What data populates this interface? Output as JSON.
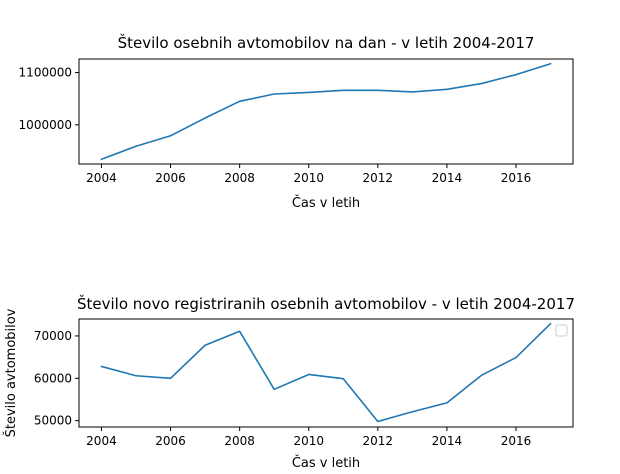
{
  "chart_data": [
    {
      "type": "line",
      "title": "Število osebnih avtomobilov na dan - v letih 2004-2017",
      "xlabel": "Čas v letih",
      "ylabel": "",
      "xlim": [
        2003.35,
        2017.65
      ],
      "ylim": [
        925000,
        1126000
      ],
      "xticks": [
        2004,
        2006,
        2008,
        2010,
        2012,
        2014,
        2016
      ],
      "yticks": [
        1000000,
        1100000
      ],
      "ytick_labels": [
        "1000000",
        "1100000"
      ],
      "color": "#1f77b4",
      "series": [
        {
          "x": [
            2004,
            2005,
            2006,
            2007,
            2008,
            2009,
            2010,
            2011,
            2012,
            2013,
            2014,
            2015,
            2016,
            2017
          ],
          "values": [
            934000,
            959000,
            979000,
            1013000,
            1045000,
            1059000,
            1062000,
            1066000,
            1066000,
            1063000,
            1068000,
            1079000,
            1096000,
            1117000
          ]
        }
      ],
      "legend": false
    },
    {
      "type": "line",
      "title": "Število novo registriranih osebnih avtomobilov - v letih 2004-2017",
      "xlabel": "Čas v letih",
      "ylabel": "Število avtomobilov",
      "xlim": [
        2003.35,
        2017.65
      ],
      "ylim": [
        48500,
        74000
      ],
      "xticks": [
        2004,
        2006,
        2008,
        2010,
        2012,
        2014,
        2016
      ],
      "yticks": [
        50000,
        60000,
        70000
      ],
      "ytick_labels": [
        "50000",
        "60000",
        "70000"
      ],
      "color": "#1f77b4",
      "series": [
        {
          "x": [
            2004,
            2005,
            2006,
            2007,
            2008,
            2009,
            2010,
            2011,
            2012,
            2013,
            2014,
            2015,
            2016,
            2017
          ],
          "values": [
            62800,
            60600,
            60000,
            67800,
            71100,
            57400,
            60900,
            59900,
            49800,
            52100,
            54200,
            60700,
            64900,
            72900
          ]
        }
      ],
      "legend": true,
      "legend_position": "top-right"
    }
  ]
}
